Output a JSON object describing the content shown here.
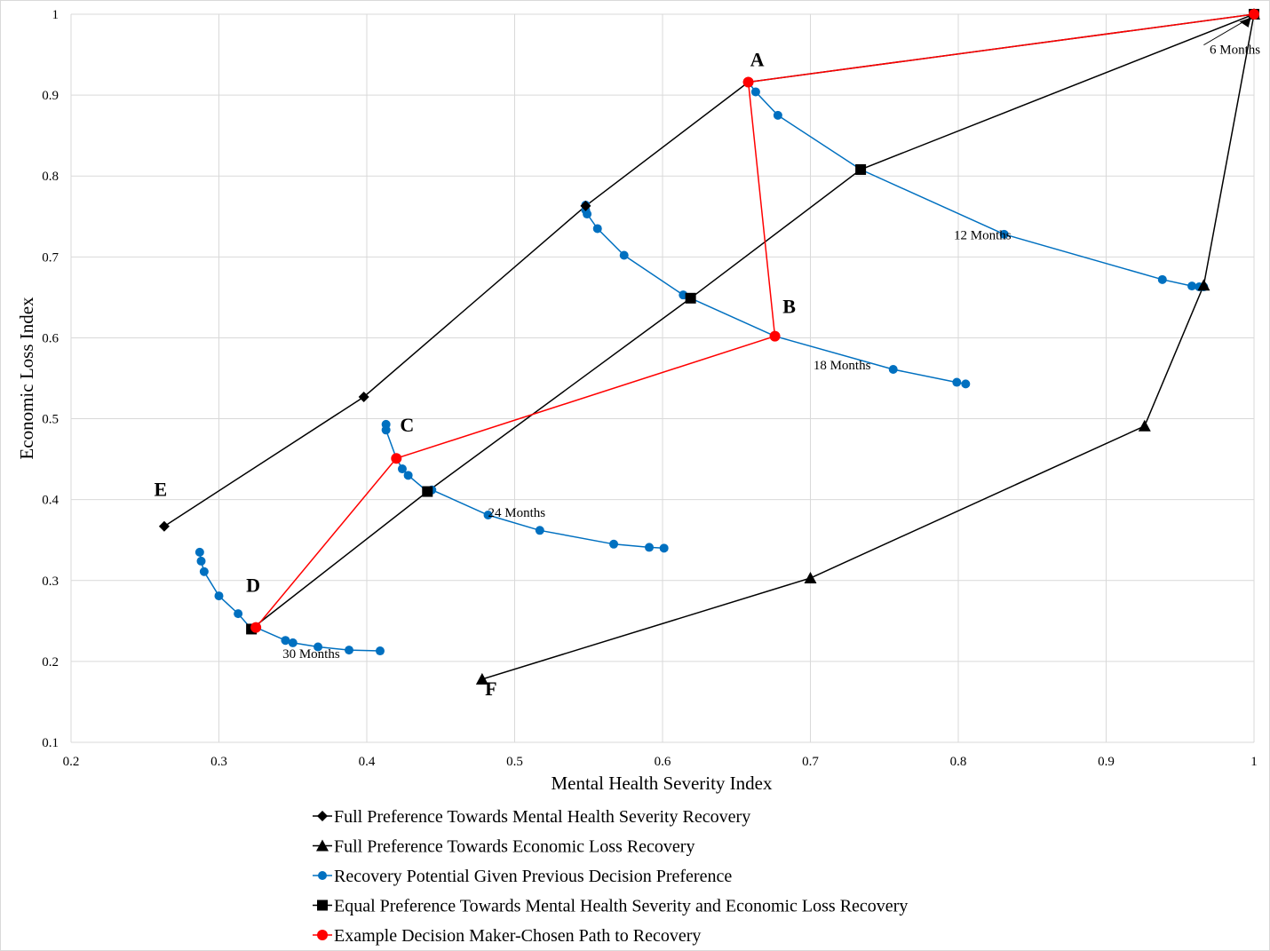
{
  "chart_data": {
    "type": "scatter",
    "xlabel": "Mental Health Severity Index",
    "ylabel": "Economic Loss Index",
    "xlim": [
      0.2,
      1
    ],
    "ylim": [
      0.1,
      1
    ],
    "x_ticks": [
      "0.2",
      "0.3",
      "0.4",
      "0.5",
      "0.6",
      "0.7",
      "0.8",
      "0.9",
      "1"
    ],
    "y_ticks": [
      "0.1",
      "0.2",
      "0.3",
      "0.4",
      "0.5",
      "0.6",
      "0.7",
      "0.8",
      "0.9",
      "1"
    ],
    "grid": "on",
    "legend_position": "bottom",
    "series": [
      {
        "name": "Full Preference Towards Mental Health Severity Recovery",
        "color": "#000000",
        "marker": "diamond",
        "points": [
          [
            1.0,
            1.0
          ],
          [
            0.658,
            0.916
          ],
          [
            0.548,
            0.763
          ],
          [
            0.398,
            0.527
          ],
          [
            0.263,
            0.367
          ]
        ]
      },
      {
        "name": "Full Preference Towards Economic Loss Recovery",
        "color": "#000000",
        "marker": "triangle",
        "points": [
          [
            1.0,
            1.0
          ],
          [
            0.966,
            0.665
          ],
          [
            0.926,
            0.491
          ],
          [
            0.7,
            0.303
          ],
          [
            0.478,
            0.178
          ]
        ]
      },
      {
        "name": "Recovery Potential Given Previous Decision Preference",
        "color": "#0070C0",
        "marker": "circle",
        "segments": [
          [
            [
              0.658,
              0.916
            ],
            [
              0.663,
              0.904
            ],
            [
              0.678,
              0.875
            ],
            [
              0.734,
              0.808
            ],
            [
              0.831,
              0.728
            ],
            [
              0.938,
              0.672
            ],
            [
              0.958,
              0.664
            ],
            [
              0.963,
              0.663
            ],
            [
              0.966,
              0.663
            ]
          ],
          [
            [
              0.548,
              0.764
            ],
            [
              0.548,
              0.758
            ],
            [
              0.549,
              0.753
            ],
            [
              0.556,
              0.735
            ],
            [
              0.574,
              0.702
            ],
            [
              0.614,
              0.653
            ],
            [
              0.619,
              0.649
            ],
            [
              0.676,
              0.602
            ],
            [
              0.756,
              0.561
            ],
            [
              0.799,
              0.545
            ],
            [
              0.805,
              0.543
            ]
          ],
          [
            [
              0.413,
              0.493
            ],
            [
              0.413,
              0.486
            ],
            [
              0.42,
              0.451
            ],
            [
              0.424,
              0.438
            ],
            [
              0.428,
              0.43
            ],
            [
              0.441,
              0.41
            ],
            [
              0.444,
              0.412
            ],
            [
              0.482,
              0.381
            ],
            [
              0.517,
              0.362
            ],
            [
              0.567,
              0.345
            ],
            [
              0.591,
              0.341
            ],
            [
              0.601,
              0.34
            ]
          ],
          [
            [
              0.287,
              0.335
            ],
            [
              0.288,
              0.324
            ],
            [
              0.29,
              0.311
            ],
            [
              0.3,
              0.281
            ],
            [
              0.313,
              0.259
            ],
            [
              0.322,
              0.24
            ],
            [
              0.325,
              0.242
            ],
            [
              0.345,
              0.226
            ],
            [
              0.35,
              0.223
            ],
            [
              0.367,
              0.218
            ],
            [
              0.388,
              0.214
            ],
            [
              0.409,
              0.213
            ]
          ]
        ]
      },
      {
        "name": "Equal Preference Towards Mental Health Severity and Economic Loss Recovery",
        "color": "#000000",
        "marker": "square",
        "points": [
          [
            1.0,
            1.0
          ],
          [
            0.734,
            0.808
          ],
          [
            0.619,
            0.649
          ],
          [
            0.441,
            0.41
          ],
          [
            0.322,
            0.24
          ]
        ]
      },
      {
        "name": "Example Decision Maker-Chosen Path to Recovery",
        "color": "#FF0000",
        "marker": "circle",
        "points": [
          [
            1.0,
            1.0
          ],
          [
            0.658,
            0.916
          ],
          [
            0.676,
            0.602
          ],
          [
            0.42,
            0.451
          ],
          [
            0.325,
            0.242
          ]
        ]
      }
    ],
    "point_labels": [
      {
        "text": "A",
        "x": 0.658,
        "y": 0.916
      },
      {
        "text": "B",
        "x": 0.676,
        "y": 0.602
      },
      {
        "text": "C",
        "x": 0.42,
        "y": 0.451
      },
      {
        "text": "D",
        "x": 0.325,
        "y": 0.242
      },
      {
        "text": "E",
        "x": 0.263,
        "y": 0.367
      },
      {
        "text": "F",
        "x": 0.478,
        "y": 0.178
      }
    ],
    "annotations": [
      {
        "text": "6 Months",
        "x": 0.97,
        "y": 0.951
      },
      {
        "text": "12 Months",
        "x": 0.797,
        "y": 0.722
      },
      {
        "text": "18 Months",
        "x": 0.702,
        "y": 0.561
      },
      {
        "text": "24 Months",
        "x": 0.482,
        "y": 0.379
      },
      {
        "text": "30 Months",
        "x": 0.343,
        "y": 0.204
      }
    ]
  }
}
